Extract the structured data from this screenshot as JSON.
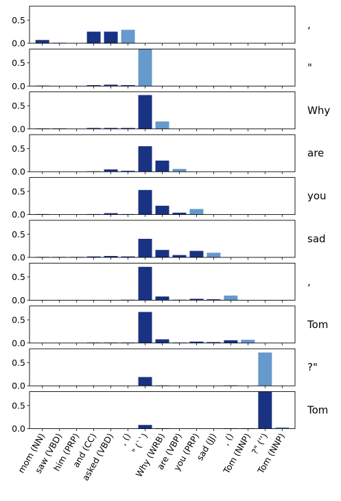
{
  "chart_data": {
    "type": "bar",
    "categories": [
      "mom (NN)",
      "saw (VBD)",
      "him (PRP)",
      "and (CC)",
      "asked (VBD)",
      ", ()",
      "\" (``)",
      "Why (WRB)",
      "are (VBP)",
      "you (PRP)",
      "sad (JJ)",
      ", ()",
      "Tom (NNP)",
      "?\" ('')",
      "Tom (NNP)"
    ],
    "ylim": [
      0,
      0.8
    ],
    "yticks": [
      "0.0",
      "0.5"
    ],
    "grid": false,
    "colors": {
      "context": "#1a3282",
      "current": "#6699cc"
    },
    "panels": [
      {
        "token": " ,",
        "highlight": 5,
        "values": [
          0.07,
          0.01,
          0,
          0.25,
          0.25,
          0.29,
          0,
          0,
          0,
          0,
          0,
          0,
          0,
          0,
          0
        ]
      },
      {
        "token": " \"",
        "highlight": 6,
        "values": [
          0.01,
          0,
          0,
          0.02,
          0.03,
          0.02,
          0.8,
          0,
          0,
          0,
          0,
          0,
          0,
          0,
          0
        ]
      },
      {
        "token": "Why",
        "highlight": 7,
        "values": [
          0.01,
          0.01,
          0,
          0.02,
          0.02,
          0.02,
          0.73,
          0.16,
          0,
          0,
          0,
          0,
          0,
          0,
          0
        ]
      },
      {
        "token": " are",
        "highlight": 8,
        "values": [
          0,
          0,
          0,
          0.01,
          0.05,
          0.02,
          0.55,
          0.24,
          0.06,
          0,
          0,
          0,
          0,
          0,
          0
        ]
      },
      {
        "token": " you",
        "highlight": 9,
        "values": [
          0.01,
          0,
          0,
          0.01,
          0.03,
          0.01,
          0.53,
          0.19,
          0.04,
          0.12,
          0,
          0,
          0,
          0,
          0
        ]
      },
      {
        "token": " sad",
        "highlight": 10,
        "values": [
          0.01,
          0.01,
          0.01,
          0.02,
          0.03,
          0.02,
          0.4,
          0.16,
          0.05,
          0.14,
          0.1,
          0,
          0,
          0,
          0
        ]
      },
      {
        "token": " ,",
        "highlight": 11,
        "values": [
          0,
          0,
          0,
          0,
          0,
          0.01,
          0.72,
          0.08,
          0.01,
          0.03,
          0.02,
          0.1,
          0,
          0,
          0
        ]
      },
      {
        "token": " Tom",
        "highlight": 12,
        "values": [
          0,
          0,
          0,
          0.01,
          0.01,
          0.01,
          0.67,
          0.08,
          0.01,
          0.03,
          0.02,
          0.06,
          0.07,
          0,
          0
        ]
      },
      {
        "token": "?\"",
        "highlight": 13,
        "values": [
          0,
          0,
          0,
          0,
          0,
          0,
          0.19,
          0.01,
          0,
          0,
          0,
          0.01,
          0,
          0.72,
          0
        ]
      },
      {
        "token": " Tom",
        "highlight": 14,
        "values": [
          0,
          0,
          0,
          0,
          0,
          0,
          0.08,
          0.01,
          0,
          0,
          0,
          0.01,
          0.01,
          0.8,
          0.03
        ]
      }
    ]
  }
}
